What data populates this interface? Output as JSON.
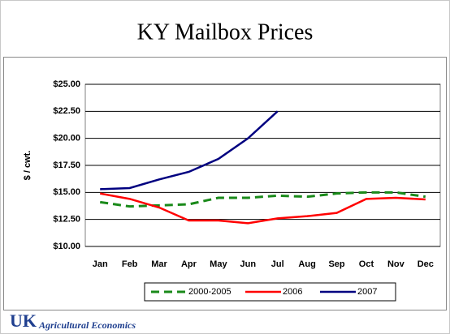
{
  "chart_data": {
    "type": "line",
    "title": "KY Mailbox Prices",
    "ylabel": "$ / cwt.",
    "categories": [
      "Jan",
      "Feb",
      "Mar",
      "Apr",
      "May",
      "Jun",
      "Jul",
      "Aug",
      "Sep",
      "Oct",
      "Nov",
      "Dec"
    ],
    "series": [
      {
        "name": "2000-2005",
        "color": "#1a8a1a",
        "dashed": true,
        "values": [
          14.1,
          13.7,
          13.8,
          13.9,
          14.5,
          14.5,
          14.7,
          14.6,
          14.9,
          15.0,
          15.0,
          14.6
        ]
      },
      {
        "name": "2006",
        "color": "#ff0000",
        "dashed": false,
        "values": [
          14.9,
          14.4,
          13.6,
          12.4,
          12.4,
          12.15,
          12.6,
          12.8,
          13.1,
          14.4,
          14.5,
          14.35
        ]
      },
      {
        "name": "2007",
        "color": "#000080",
        "dashed": false,
        "values": [
          15.3,
          15.4,
          16.2,
          16.9,
          18.1,
          20.0,
          22.5,
          null,
          null,
          null,
          null,
          null
        ]
      }
    ],
    "ylim": [
      10,
      25
    ],
    "yticks": [
      {
        "value": 10,
        "label": "$10.00"
      },
      {
        "value": 12.5,
        "label": "$12.50"
      },
      {
        "value": 15,
        "label": "$15.00"
      },
      {
        "value": 17.5,
        "label": "$17.50"
      },
      {
        "value": 20,
        "label": "$20.00"
      },
      {
        "value": 22.5,
        "label": "$22.50"
      },
      {
        "value": 25,
        "label": "$25.00"
      }
    ],
    "grid": true,
    "legend": "bottom"
  },
  "footer": {
    "logo": "UK",
    "text": "Agricultural Economics"
  }
}
